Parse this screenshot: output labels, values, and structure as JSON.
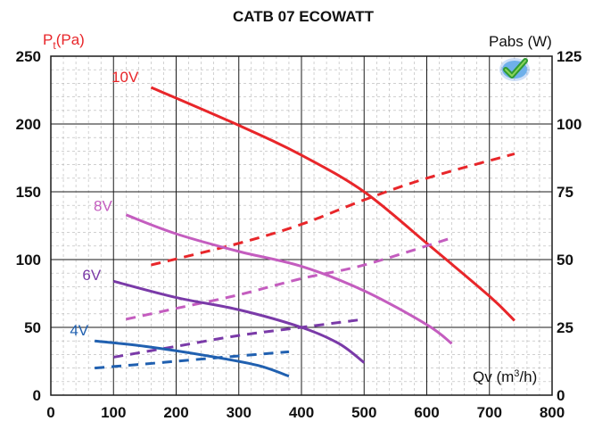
{
  "chart_data": {
    "type": "line",
    "title": "CATB 07 ECOWATT",
    "x_label_main": "Qv (m",
    "x_label_sup": "3",
    "x_label_end": "/h)",
    "y_left_label_main": "P",
    "y_left_label_sub": "t",
    "y_left_label_end": "(Pa)",
    "y_right_label": "Pabs (W)",
    "xlim": [
      0,
      800
    ],
    "ylim_left": [
      0,
      250
    ],
    "ylim_right": [
      0,
      125
    ],
    "x_ticks": [
      "0",
      "100",
      "200",
      "300",
      "400",
      "500",
      "600",
      "700",
      "800"
    ],
    "y_left_ticks": [
      "0",
      "50",
      "100",
      "150",
      "200",
      "250"
    ],
    "y_right_ticks": [
      "0",
      "25",
      "50",
      "75",
      "100",
      "125"
    ],
    "grid": true,
    "logo": "ecowatt-check-logo",
    "colors": {
      "10V": "#e8262a",
      "8V": "#c45dbf",
      "6V": "#7a3aa8",
      "4V": "#2060b0"
    },
    "series": [
      {
        "name": "10V",
        "axis": "left",
        "style": "solid",
        "points": [
          [
            160,
            227
          ],
          [
            300,
            199
          ],
          [
            400,
            177
          ],
          [
            500,
            150
          ],
          [
            600,
            112
          ],
          [
            700,
            73
          ],
          [
            740,
            55
          ]
        ]
      },
      {
        "name": "10V",
        "axis": "right",
        "style": "dashed",
        "points": [
          [
            160,
            48
          ],
          [
            300,
            56
          ],
          [
            400,
            63
          ],
          [
            500,
            72
          ],
          [
            600,
            80
          ],
          [
            740,
            89
          ]
        ]
      },
      {
        "name": "8V",
        "axis": "left",
        "style": "solid",
        "points": [
          [
            120,
            133
          ],
          [
            200,
            119
          ],
          [
            300,
            106
          ],
          [
            400,
            95
          ],
          [
            500,
            77
          ],
          [
            600,
            52
          ],
          [
            640,
            38
          ]
        ]
      },
      {
        "name": "8V",
        "axis": "right",
        "style": "dashed",
        "points": [
          [
            120,
            28
          ],
          [
            200,
            32
          ],
          [
            300,
            37
          ],
          [
            400,
            43
          ],
          [
            500,
            48
          ],
          [
            640,
            58
          ]
        ]
      },
      {
        "name": "6V",
        "axis": "left",
        "style": "solid",
        "points": [
          [
            100,
            84
          ],
          [
            200,
            72
          ],
          [
            300,
            63
          ],
          [
            400,
            50
          ],
          [
            460,
            38
          ],
          [
            500,
            24
          ]
        ]
      },
      {
        "name": "6V",
        "axis": "right",
        "style": "dashed",
        "points": [
          [
            100,
            14
          ],
          [
            200,
            18
          ],
          [
            300,
            22
          ],
          [
            400,
            25
          ],
          [
            500,
            28
          ]
        ]
      },
      {
        "name": "4V",
        "axis": "left",
        "style": "solid",
        "points": [
          [
            70,
            40
          ],
          [
            150,
            36
          ],
          [
            250,
            29
          ],
          [
            330,
            22
          ],
          [
            380,
            14
          ]
        ]
      },
      {
        "name": "4V",
        "axis": "right",
        "style": "dashed",
        "points": [
          [
            70,
            10
          ],
          [
            150,
            11.5
          ],
          [
            250,
            13.5
          ],
          [
            380,
            16
          ]
        ]
      }
    ],
    "series_labels": [
      {
        "text": "10V",
        "x": 140,
        "y": 231
      },
      {
        "text": "8V",
        "x": 98,
        "y": 136
      },
      {
        "text": "6V",
        "x": 80,
        "y": 85
      },
      {
        "text": "4V",
        "x": 60,
        "y": 44
      }
    ]
  }
}
